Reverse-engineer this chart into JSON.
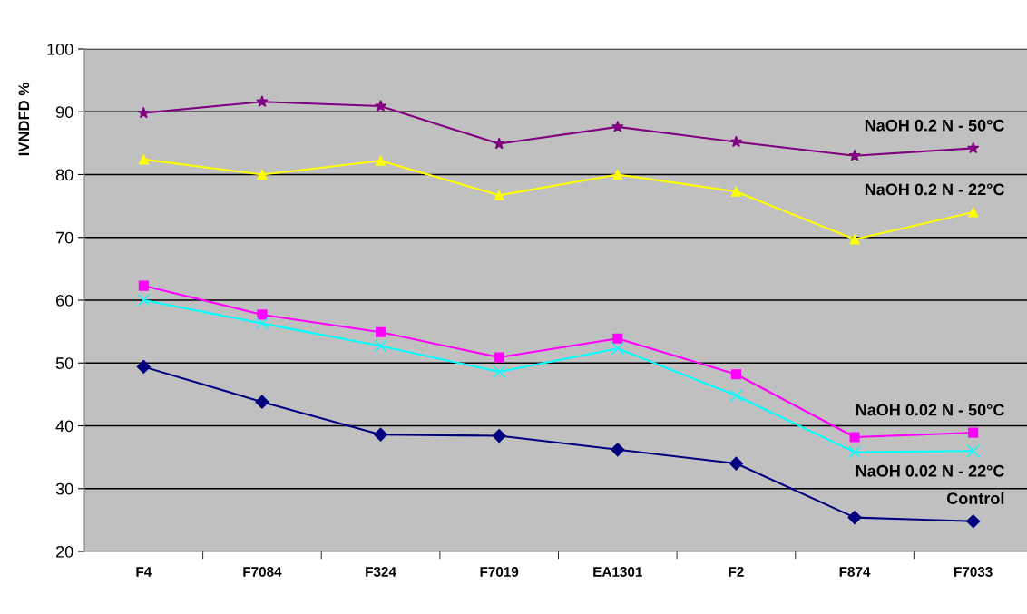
{
  "chart_data": {
    "type": "line",
    "ylabel": "IVNDFD %",
    "categories": [
      "F4",
      "F7084",
      "F324",
      "F7019",
      "EA1301",
      "F2",
      "F874",
      "F7033"
    ],
    "series": [
      {
        "name": "NaOH 0.2 N - 50°C",
        "color": "#800080",
        "marker": "star",
        "values": [
          89.8,
          91.6,
          90.9,
          84.9,
          87.6,
          85.2,
          83.0,
          84.2
        ]
      },
      {
        "name": "NaOH 0.2 N - 22°C",
        "color": "#ffff00",
        "marker": "triangle",
        "values": [
          82.4,
          80.0,
          82.2,
          76.7,
          80.0,
          77.3,
          69.7,
          74.0
        ]
      },
      {
        "name": "NaOH 0.02 N - 50°C",
        "color": "#ff00ff",
        "marker": "square",
        "values": [
          62.3,
          57.7,
          54.9,
          50.9,
          53.9,
          48.2,
          38.2,
          38.9
        ]
      },
      {
        "name": "NaOH 0.02 N - 22°C",
        "color": "#00ffff",
        "marker": "cross",
        "values": [
          60.0,
          56.3,
          52.7,
          48.6,
          52.3,
          44.8,
          35.8,
          36.0
        ]
      },
      {
        "name": "Control",
        "color": "#000080",
        "marker": "diamond",
        "values": [
          49.4,
          43.8,
          38.6,
          38.4,
          36.2,
          34.0,
          25.4,
          24.8
        ]
      }
    ],
    "ylim": [
      20,
      100
    ],
    "yticks": [
      20,
      30,
      40,
      50,
      60,
      70,
      80,
      90,
      100
    ],
    "grid": "y",
    "legend": false,
    "line_style": "solid"
  }
}
